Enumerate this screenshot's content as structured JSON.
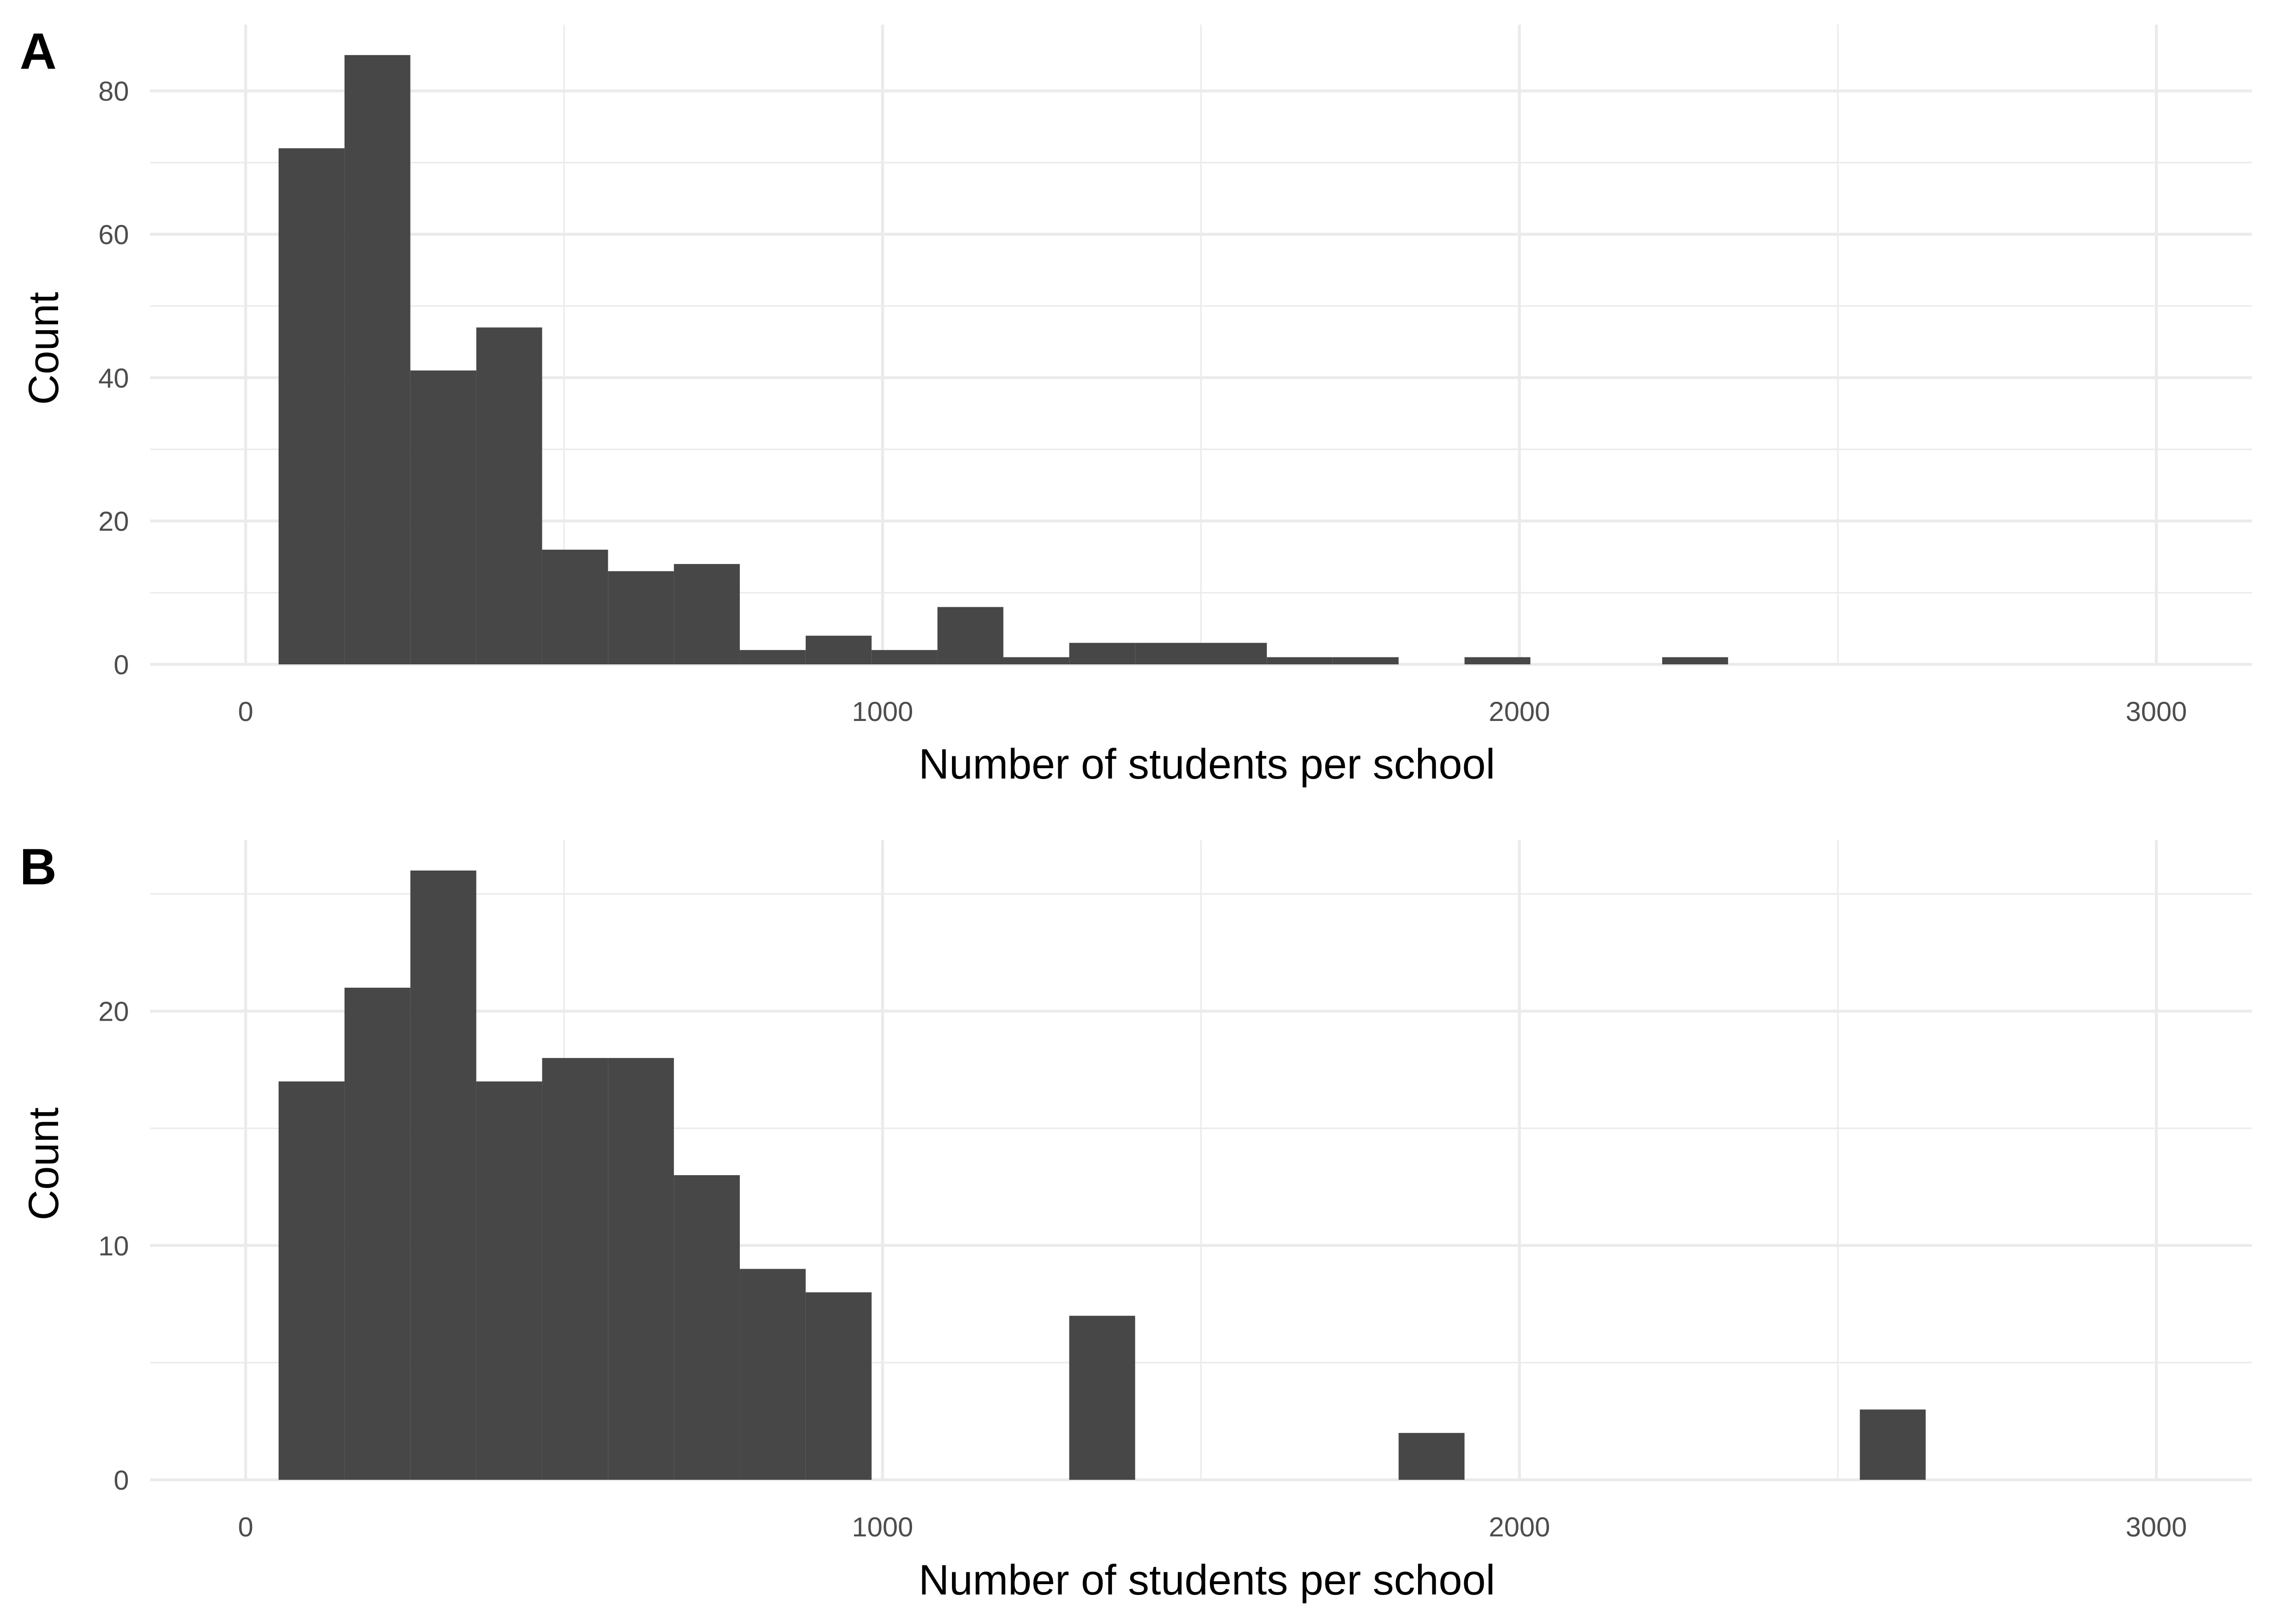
{
  "chart_data": [
    {
      "type": "bar",
      "panel_label": "A",
      "xlabel": "Number of students per school",
      "ylabel": "Count",
      "xlim": [
        -150,
        3150
      ],
      "ylim": [
        0,
        89.25
      ],
      "x_ticks": [
        0,
        1000,
        2000,
        3000
      ],
      "y_ticks": [
        0,
        20,
        40,
        60,
        80
      ],
      "grid": true,
      "bin_width": 103.45,
      "bins": [
        {
          "x0": 51.7,
          "x1": 155.2,
          "count": 72
        },
        {
          "x0": 155.2,
          "x1": 258.6,
          "count": 85
        },
        {
          "x0": 258.6,
          "x1": 362.1,
          "count": 41
        },
        {
          "x0": 362.1,
          "x1": 465.5,
          "count": 47
        },
        {
          "x0": 465.5,
          "x1": 569.0,
          "count": 16
        },
        {
          "x0": 569.0,
          "x1": 672.4,
          "count": 13
        },
        {
          "x0": 672.4,
          "x1": 775.9,
          "count": 14
        },
        {
          "x0": 775.9,
          "x1": 879.3,
          "count": 2
        },
        {
          "x0": 879.3,
          "x1": 982.8,
          "count": 4
        },
        {
          "x0": 982.8,
          "x1": 1086.2,
          "count": 2
        },
        {
          "x0": 1086.2,
          "x1": 1189.7,
          "count": 8
        },
        {
          "x0": 1189.7,
          "x1": 1293.1,
          "count": 1
        },
        {
          "x0": 1293.1,
          "x1": 1396.6,
          "count": 3
        },
        {
          "x0": 1396.6,
          "x1": 1500.0,
          "count": 3
        },
        {
          "x0": 1500.0,
          "x1": 1603.4,
          "count": 3
        },
        {
          "x0": 1603.4,
          "x1": 1706.9,
          "count": 1
        },
        {
          "x0": 1706.9,
          "x1": 1810.3,
          "count": 1
        },
        {
          "x0": 1810.3,
          "x1": 1913.8,
          "count": 0
        },
        {
          "x0": 1913.8,
          "x1": 2017.2,
          "count": 1
        },
        {
          "x0": 2017.2,
          "x1": 2120.7,
          "count": 0
        },
        {
          "x0": 2120.7,
          "x1": 2224.1,
          "count": 0
        },
        {
          "x0": 2224.1,
          "x1": 2327.6,
          "count": 1
        }
      ]
    },
    {
      "type": "bar",
      "panel_label": "B",
      "xlabel": "Number of students per school",
      "ylabel": "Count",
      "xlim": [
        -150,
        3150
      ],
      "ylim": [
        0,
        27.3
      ],
      "x_ticks": [
        0,
        1000,
        2000,
        3000
      ],
      "y_ticks": [
        0,
        10,
        20
      ],
      "grid": true,
      "bin_width": 103.45,
      "bins": [
        {
          "x0": 51.7,
          "x1": 155.2,
          "count": 17
        },
        {
          "x0": 155.2,
          "x1": 258.6,
          "count": 21
        },
        {
          "x0": 258.6,
          "x1": 362.1,
          "count": 26
        },
        {
          "x0": 362.1,
          "x1": 465.5,
          "count": 17
        },
        {
          "x0": 465.5,
          "x1": 569.0,
          "count": 18
        },
        {
          "x0": 569.0,
          "x1": 672.4,
          "count": 18
        },
        {
          "x0": 672.4,
          "x1": 775.9,
          "count": 13
        },
        {
          "x0": 775.9,
          "x1": 879.3,
          "count": 9
        },
        {
          "x0": 879.3,
          "x1": 982.8,
          "count": 8
        },
        {
          "x0": 1293.1,
          "x1": 1396.6,
          "count": 7
        },
        {
          "x0": 1810.3,
          "x1": 1913.8,
          "count": 2
        },
        {
          "x0": 2534.5,
          "x1": 2637.9,
          "count": 3
        }
      ]
    }
  ]
}
